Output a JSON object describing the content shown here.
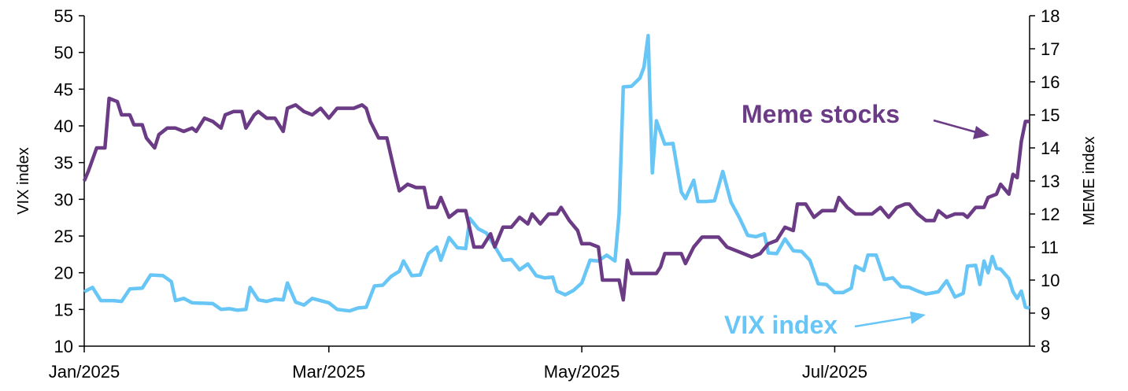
{
  "chart_data": {
    "type": "line",
    "title": "",
    "xlabel": "",
    "colors": {
      "vix": "#67c6f5",
      "meme": "#6b3b86",
      "axis": "#000000"
    },
    "x_domain": [
      "2025-01-01",
      "2025-08-17"
    ],
    "x_ticks": [
      {
        "label": "Jan/2025",
        "date": "2025-01-01"
      },
      {
        "label": "Mar/2025",
        "date": "2025-03-01"
      },
      {
        "label": "May/2025",
        "date": "2025-05-01"
      },
      {
        "label": "Jul/2025",
        "date": "2025-07-01"
      }
    ],
    "y_left": {
      "label": "VIX index",
      "range": [
        10,
        55
      ],
      "ticks": [
        10,
        15,
        20,
        25,
        30,
        35,
        40,
        45,
        50,
        55
      ]
    },
    "y_right": {
      "label": "MEME index",
      "range": [
        8,
        18
      ],
      "ticks": [
        8,
        9,
        10,
        11,
        12,
        13,
        14,
        15,
        16,
        17,
        18
      ]
    },
    "annotations": {
      "meme_label": "Meme stocks",
      "vix_label": "VIX index"
    },
    "series": [
      {
        "name": "VIX index",
        "axis": "left",
        "points": [
          [
            "2025-01-01",
            17.4
          ],
          [
            "2025-01-03",
            18.0
          ],
          [
            "2025-01-05",
            16.2
          ],
          [
            "2025-01-08",
            16.2
          ],
          [
            "2025-01-10",
            16.1
          ],
          [
            "2025-01-12",
            17.8
          ],
          [
            "2025-01-15",
            17.9
          ],
          [
            "2025-01-17",
            19.7
          ],
          [
            "2025-01-20",
            19.6
          ],
          [
            "2025-01-22",
            18.8
          ],
          [
            "2025-01-23",
            16.2
          ],
          [
            "2025-01-25",
            16.5
          ],
          [
            "2025-01-27",
            15.9
          ],
          [
            "2025-02-01",
            15.8
          ],
          [
            "2025-02-03",
            15.0
          ],
          [
            "2025-02-05",
            15.1
          ],
          [
            "2025-02-07",
            14.9
          ],
          [
            "2025-02-09",
            15.0
          ],
          [
            "2025-02-10",
            18.0
          ],
          [
            "2025-02-12",
            16.3
          ],
          [
            "2025-02-14",
            16.1
          ],
          [
            "2025-02-16",
            16.4
          ],
          [
            "2025-02-18",
            16.3
          ],
          [
            "2025-02-19",
            18.6
          ],
          [
            "2025-02-21",
            16.0
          ],
          [
            "2025-02-23",
            15.6
          ],
          [
            "2025-02-25",
            16.5
          ],
          [
            "2025-03-01",
            15.9
          ],
          [
            "2025-03-03",
            15.0
          ],
          [
            "2025-03-06",
            14.8
          ],
          [
            "2025-03-08",
            15.2
          ],
          [
            "2025-03-10",
            15.3
          ],
          [
            "2025-03-12",
            18.2
          ],
          [
            "2025-03-14",
            18.3
          ],
          [
            "2025-03-16",
            19.5
          ],
          [
            "2025-03-18",
            20.2
          ],
          [
            "2025-03-19",
            21.6
          ],
          [
            "2025-03-21",
            19.6
          ],
          [
            "2025-03-23",
            19.7
          ],
          [
            "2025-03-25",
            22.6
          ],
          [
            "2025-03-27",
            23.5
          ],
          [
            "2025-03-28",
            21.7
          ],
          [
            "2025-03-30",
            24.8
          ],
          [
            "2025-04-01",
            23.4
          ],
          [
            "2025-04-03",
            23.3
          ],
          [
            "2025-04-04",
            27.4
          ],
          [
            "2025-04-06",
            26.0
          ],
          [
            "2025-04-08",
            25.4
          ],
          [
            "2025-04-10",
            23.6
          ],
          [
            "2025-04-12",
            21.7
          ],
          [
            "2025-04-14",
            21.8
          ],
          [
            "2025-04-16",
            20.4
          ],
          [
            "2025-04-18",
            21.2
          ],
          [
            "2025-04-20",
            19.6
          ],
          [
            "2025-04-22",
            19.3
          ],
          [
            "2025-04-24",
            19.4
          ],
          [
            "2025-04-25",
            17.5
          ],
          [
            "2025-04-27",
            17.0
          ],
          [
            "2025-04-29",
            17.6
          ],
          [
            "2025-05-01",
            18.6
          ],
          [
            "2025-05-03",
            21.7
          ],
          [
            "2025-05-05",
            21.6
          ],
          [
            "2025-05-07",
            22.4
          ],
          [
            "2025-05-09",
            21.6
          ],
          [
            "2025-05-10",
            28.0
          ],
          [
            "2025-05-11",
            45.3
          ],
          [
            "2025-05-13",
            45.4
          ],
          [
            "2025-05-15",
            46.5
          ],
          [
            "2025-05-16",
            48.0
          ],
          [
            "2025-05-17",
            52.3
          ],
          [
            "2025-05-18",
            33.6
          ],
          [
            "2025-05-19",
            40.7
          ],
          [
            "2025-05-21",
            37.5
          ],
          [
            "2025-05-23",
            37.6
          ],
          [
            "2025-05-25",
            31.0
          ],
          [
            "2025-05-26",
            30.1
          ],
          [
            "2025-05-28",
            32.6
          ],
          [
            "2025-05-29",
            29.7
          ],
          [
            "2025-05-31",
            29.7
          ],
          [
            "2025-06-02",
            29.8
          ],
          [
            "2025-06-04",
            33.8
          ],
          [
            "2025-06-06",
            29.6
          ],
          [
            "2025-06-08",
            27.5
          ],
          [
            "2025-06-10",
            25.1
          ],
          [
            "2025-06-12",
            24.9
          ],
          [
            "2025-06-14",
            25.3
          ],
          [
            "2025-06-15",
            22.7
          ],
          [
            "2025-06-17",
            22.6
          ],
          [
            "2025-06-19",
            24.6
          ],
          [
            "2025-06-21",
            23.0
          ],
          [
            "2025-06-23",
            22.9
          ],
          [
            "2025-06-25",
            21.7
          ],
          [
            "2025-06-27",
            18.5
          ],
          [
            "2025-06-29",
            18.4
          ],
          [
            "2025-07-01",
            17.3
          ],
          [
            "2025-07-03",
            17.3
          ],
          [
            "2025-07-05",
            17.9
          ],
          [
            "2025-07-06",
            20.9
          ],
          [
            "2025-07-08",
            20.3
          ],
          [
            "2025-07-09",
            22.4
          ],
          [
            "2025-07-11",
            22.4
          ],
          [
            "2025-07-13",
            19.1
          ],
          [
            "2025-07-15",
            19.3
          ],
          [
            "2025-07-17",
            18.1
          ],
          [
            "2025-07-19",
            18.0
          ],
          [
            "2025-07-21",
            17.5
          ],
          [
            "2025-07-23",
            17.1
          ],
          [
            "2025-07-24",
            17.2
          ],
          [
            "2025-07-26",
            17.4
          ],
          [
            "2025-07-28",
            18.9
          ],
          [
            "2025-07-30",
            16.7
          ],
          [
            "2025-08-01",
            17.2
          ],
          [
            "2025-08-02",
            20.9
          ],
          [
            "2025-08-04",
            21.0
          ],
          [
            "2025-08-05",
            18.4
          ],
          [
            "2025-08-06",
            21.6
          ],
          [
            "2025-08-07",
            20.0
          ],
          [
            "2025-08-08",
            22.2
          ],
          [
            "2025-08-09",
            20.6
          ],
          [
            "2025-08-10",
            20.5
          ],
          [
            "2025-08-12",
            19.2
          ],
          [
            "2025-08-13",
            17.4
          ],
          [
            "2025-08-14",
            16.5
          ],
          [
            "2025-08-15",
            17.5
          ],
          [
            "2025-08-16",
            15.3
          ],
          [
            "2025-08-17",
            15.2
          ]
        ]
      },
      {
        "name": "Meme stocks",
        "axis": "right",
        "points": [
          [
            "2025-01-01",
            13.0
          ],
          [
            "2025-01-02",
            13.3
          ],
          [
            "2025-01-04",
            14.0
          ],
          [
            "2025-01-06",
            14.0
          ],
          [
            "2025-01-07",
            15.5
          ],
          [
            "2025-01-09",
            15.4
          ],
          [
            "2025-01-10",
            15.0
          ],
          [
            "2025-01-12",
            15.0
          ],
          [
            "2025-01-13",
            14.7
          ],
          [
            "2025-01-15",
            14.7
          ],
          [
            "2025-01-16",
            14.3
          ],
          [
            "2025-01-18",
            14.0
          ],
          [
            "2025-01-19",
            14.4
          ],
          [
            "2025-01-21",
            14.6
          ],
          [
            "2025-01-23",
            14.6
          ],
          [
            "2025-01-25",
            14.5
          ],
          [
            "2025-01-27",
            14.6
          ],
          [
            "2025-01-28",
            14.5
          ],
          [
            "2025-01-30",
            14.9
          ],
          [
            "2025-02-01",
            14.8
          ],
          [
            "2025-02-03",
            14.6
          ],
          [
            "2025-02-04",
            15.0
          ],
          [
            "2025-02-06",
            15.1
          ],
          [
            "2025-02-08",
            15.1
          ],
          [
            "2025-02-09",
            14.6
          ],
          [
            "2025-02-11",
            15.0
          ],
          [
            "2025-02-12",
            15.1
          ],
          [
            "2025-02-14",
            14.9
          ],
          [
            "2025-02-16",
            14.9
          ],
          [
            "2025-02-18",
            14.5
          ],
          [
            "2025-02-19",
            15.2
          ],
          [
            "2025-02-21",
            15.3
          ],
          [
            "2025-02-23",
            15.1
          ],
          [
            "2025-02-25",
            15.0
          ],
          [
            "2025-02-27",
            15.2
          ],
          [
            "2025-03-01",
            14.9
          ],
          [
            "2025-03-03",
            15.2
          ],
          [
            "2025-03-05",
            15.2
          ],
          [
            "2025-03-07",
            15.2
          ],
          [
            "2025-03-09",
            15.3
          ],
          [
            "2025-03-10",
            15.2
          ],
          [
            "2025-03-11",
            14.8
          ],
          [
            "2025-03-13",
            14.3
          ],
          [
            "2025-03-15",
            14.3
          ],
          [
            "2025-03-17",
            13.2
          ],
          [
            "2025-03-18",
            12.7
          ],
          [
            "2025-03-20",
            12.9
          ],
          [
            "2025-03-22",
            12.8
          ],
          [
            "2025-03-24",
            12.8
          ],
          [
            "2025-03-25",
            12.2
          ],
          [
            "2025-03-27",
            12.2
          ],
          [
            "2025-03-28",
            12.5
          ],
          [
            "2025-03-30",
            11.9
          ],
          [
            "2025-04-01",
            12.1
          ],
          [
            "2025-04-03",
            12.1
          ],
          [
            "2025-04-05",
            11.0
          ],
          [
            "2025-04-07",
            11.0
          ],
          [
            "2025-04-09",
            11.4
          ],
          [
            "2025-04-10",
            11.0
          ],
          [
            "2025-04-12",
            11.6
          ],
          [
            "2025-04-14",
            11.6
          ],
          [
            "2025-04-16",
            11.9
          ],
          [
            "2025-04-18",
            11.7
          ],
          [
            "2025-04-19",
            12.0
          ],
          [
            "2025-04-21",
            11.7
          ],
          [
            "2025-04-23",
            12.0
          ],
          [
            "2025-04-25",
            12.0
          ],
          [
            "2025-04-26",
            12.2
          ],
          [
            "2025-04-28",
            11.8
          ],
          [
            "2025-04-30",
            11.5
          ],
          [
            "2025-05-01",
            11.1
          ],
          [
            "2025-05-03",
            11.1
          ],
          [
            "2025-05-05",
            11.0
          ],
          [
            "2025-05-06",
            10.0
          ],
          [
            "2025-05-08",
            10.0
          ],
          [
            "2025-05-10",
            10.0
          ],
          [
            "2025-05-11",
            9.4
          ],
          [
            "2025-05-12",
            10.6
          ],
          [
            "2025-05-13",
            10.2
          ],
          [
            "2025-05-15",
            10.2
          ],
          [
            "2025-05-17",
            10.2
          ],
          [
            "2025-05-19",
            10.2
          ],
          [
            "2025-05-20",
            10.4
          ],
          [
            "2025-05-21",
            10.8
          ],
          [
            "2025-05-23",
            10.8
          ],
          [
            "2025-05-25",
            10.8
          ],
          [
            "2025-05-26",
            10.5
          ],
          [
            "2025-05-28",
            11.0
          ],
          [
            "2025-05-30",
            11.3
          ],
          [
            "2025-06-01",
            11.3
          ],
          [
            "2025-06-03",
            11.3
          ],
          [
            "2025-06-05",
            11.0
          ],
          [
            "2025-06-07",
            10.9
          ],
          [
            "2025-06-09",
            10.8
          ],
          [
            "2025-06-11",
            10.7
          ],
          [
            "2025-06-13",
            10.8
          ],
          [
            "2025-06-15",
            11.1
          ],
          [
            "2025-06-17",
            11.2
          ],
          [
            "2025-06-19",
            11.6
          ],
          [
            "2025-06-21",
            11.5
          ],
          [
            "2025-06-22",
            12.3
          ],
          [
            "2025-06-24",
            12.3
          ],
          [
            "2025-06-26",
            11.9
          ],
          [
            "2025-06-28",
            12.1
          ],
          [
            "2025-06-30",
            12.1
          ],
          [
            "2025-07-01",
            12.1
          ],
          [
            "2025-07-02",
            12.5
          ],
          [
            "2025-07-04",
            12.2
          ],
          [
            "2025-07-06",
            12.0
          ],
          [
            "2025-07-08",
            12.0
          ],
          [
            "2025-07-10",
            12.0
          ],
          [
            "2025-07-12",
            12.2
          ],
          [
            "2025-07-14",
            11.9
          ],
          [
            "2025-07-16",
            12.2
          ],
          [
            "2025-07-18",
            12.3
          ],
          [
            "2025-07-19",
            12.3
          ],
          [
            "2025-07-21",
            12.0
          ],
          [
            "2025-07-23",
            11.8
          ],
          [
            "2025-07-25",
            11.8
          ],
          [
            "2025-07-26",
            12.1
          ],
          [
            "2025-07-28",
            11.9
          ],
          [
            "2025-07-30",
            12.0
          ],
          [
            "2025-08-01",
            12.0
          ],
          [
            "2025-08-02",
            11.9
          ],
          [
            "2025-08-04",
            12.2
          ],
          [
            "2025-08-06",
            12.2
          ],
          [
            "2025-08-07",
            12.5
          ],
          [
            "2025-08-09",
            12.6
          ],
          [
            "2025-08-10",
            12.9
          ],
          [
            "2025-08-12",
            12.6
          ],
          [
            "2025-08-13",
            13.2
          ],
          [
            "2025-08-14",
            13.1
          ],
          [
            "2025-08-15",
            14.2
          ],
          [
            "2025-08-16",
            14.8
          ],
          [
            "2025-08-17",
            14.8
          ]
        ]
      }
    ]
  }
}
